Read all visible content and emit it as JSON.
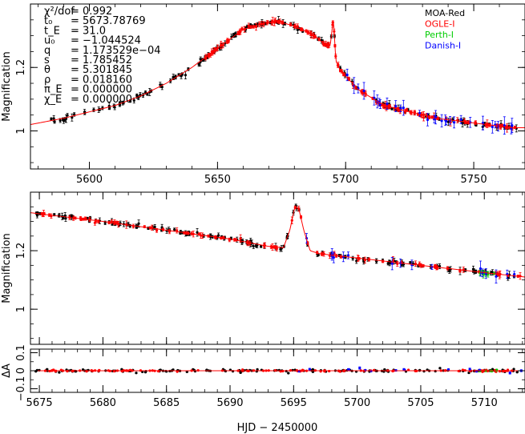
{
  "chart_data": [
    {
      "type": "scatter",
      "panel": "top",
      "xlim": [
        5577,
        5770
      ],
      "ylim": [
        0.88,
        1.4
      ],
      "xticks": [
        5600,
        5650,
        5700,
        5750
      ],
      "yticks": [
        1,
        1.2
      ],
      "ylabel": "Magnification",
      "params": [
        {
          "name": "χ²/dof",
          "value": "= 0.992"
        },
        {
          "name": "t₀",
          "value": "= 5673.78769"
        },
        {
          "name": "t_E",
          "value": "= 31.0"
        },
        {
          "name": "u₀",
          "value": "= −1.044524"
        },
        {
          "name": "q",
          "value": "= 1.173529e−04"
        },
        {
          "name": "s",
          "value": "= 1.785452"
        },
        {
          "name": "θ",
          "value": "= 5.301845"
        },
        {
          "name": "ρ",
          "value": "= 0.018160"
        },
        {
          "name": "π_E",
          "value": "= 0.000000"
        },
        {
          "name": "χ_E",
          "value": "= 0.000000"
        }
      ],
      "legend": [
        {
          "name": "MOA-Red",
          "color": "#000000"
        },
        {
          "name": "OGLE-I",
          "color": "#ff0000"
        },
        {
          "name": "Perth-I",
          "color": "#00cc00"
        },
        {
          "name": "Danish-I",
          "color": "#0000ff"
        }
      ],
      "model": {
        "x": [
          5577,
          5590,
          5600,
          5610,
          5620,
          5630,
          5640,
          5650,
          5660,
          5668,
          5673.8,
          5680,
          5688,
          5692,
          5694,
          5695.2,
          5696.2,
          5698,
          5705,
          5715,
          5725,
          5735,
          5745,
          5755,
          5765,
          5770
        ],
        "y": [
          1.02,
          1.04,
          1.06,
          1.08,
          1.11,
          1.15,
          1.2,
          1.26,
          1.32,
          1.34,
          1.345,
          1.33,
          1.3,
          1.27,
          1.27,
          1.355,
          1.22,
          1.19,
          1.13,
          1.08,
          1.06,
          1.04,
          1.03,
          1.02,
          1.01,
          1.01
        ]
      },
      "series": [
        {
          "name": "MOA-Red",
          "color": "#000000",
          "n": 170,
          "xr": [
            5585,
            5768
          ]
        },
        {
          "name": "OGLE-I",
          "color": "#ff0000",
          "n": 160,
          "xr": [
            5645,
            5768
          ]
        },
        {
          "name": "Danish-I",
          "color": "#0000ff",
          "n": 30,
          "xr": [
            5695,
            5765
          ]
        }
      ]
    },
    {
      "type": "scatter",
      "panel": "middle",
      "xlim": [
        5674.3,
        5713.2
      ],
      "ylim": [
        0.88,
        1.4
      ],
      "yticks": [
        1,
        1.2
      ],
      "ylabel": "Magnification",
      "model": {
        "x": [
          5674.3,
          5680,
          5685,
          5690,
          5693,
          5694.2,
          5694.7,
          5695.1,
          5695.4,
          5695.8,
          5696.3,
          5697,
          5700,
          5705,
          5710,
          5713.2
        ],
        "y": [
          1.33,
          1.3,
          1.27,
          1.24,
          1.215,
          1.21,
          1.27,
          1.35,
          1.345,
          1.27,
          1.2,
          1.19,
          1.175,
          1.15,
          1.125,
          1.11
        ]
      },
      "series": [
        {
          "name": "MOA-Red",
          "color": "#000000",
          "n": 150,
          "xr": [
            5674.5,
            5713
          ]
        },
        {
          "name": "OGLE-I",
          "color": "#ff0000",
          "n": 110,
          "xr": [
            5675,
            5713
          ]
        },
        {
          "name": "Perth-I",
          "color": "#00cc00",
          "n": 10,
          "xr": [
            5709.5,
            5711
          ]
        },
        {
          "name": "Danish-I",
          "color": "#0000ff",
          "n": 16,
          "xr": [
            5695,
            5713
          ]
        }
      ]
    },
    {
      "type": "scatter",
      "panel": "residuals",
      "xlim": [
        5674.3,
        5713.2
      ],
      "ylim": [
        -0.12,
        0.12
      ],
      "xticks": [
        5675,
        5680,
        5685,
        5690,
        5695,
        5700,
        5705,
        5710
      ],
      "yticks": [
        -0.1,
        0,
        0.1
      ],
      "ylabel": "ΔA",
      "xlabel": "HJD − 2450000"
    }
  ]
}
